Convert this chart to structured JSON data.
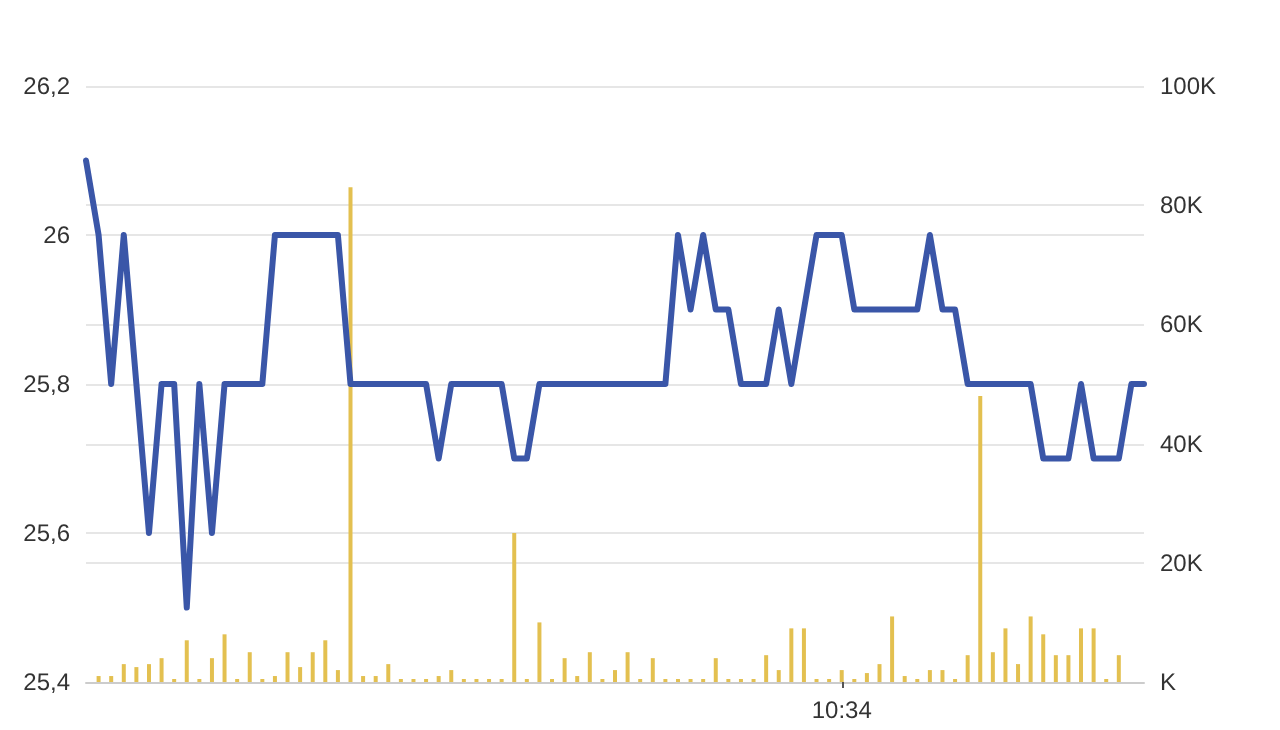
{
  "chart_data": {
    "type": "line",
    "categories": [
      null,
      null,
      null,
      null,
      null,
      null,
      null,
      null,
      null,
      null,
      null,
      null,
      null,
      null,
      null,
      null,
      null,
      null,
      null,
      null,
      null,
      null,
      null,
      null,
      null,
      null,
      null,
      null,
      null,
      null,
      null,
      null,
      null,
      null,
      null,
      null,
      null,
      null,
      null,
      null,
      null,
      null,
      null,
      null,
      null,
      null,
      null,
      null,
      null,
      null,
      null,
      null,
      null,
      null,
      null,
      null,
      null,
      null,
      null,
      null,
      "10:34",
      null,
      null,
      null,
      null,
      null,
      null,
      null,
      null,
      null,
      null,
      null,
      null,
      null,
      null,
      null,
      null,
      null,
      null,
      null,
      null,
      null,
      null,
      null,
      null
    ],
    "series": [
      {
        "type": "bar",
        "axis": "y2",
        "color": "#e3c050",
        "values": [
          null,
          1,
          1,
          3,
          2.5,
          3,
          4,
          0.5,
          7,
          0.5,
          4,
          8,
          0.5,
          5,
          0.5,
          1,
          5,
          2.5,
          5,
          7,
          2,
          83,
          1,
          1,
          3,
          0.5,
          0.5,
          0.5,
          1,
          2,
          0.5,
          0.5,
          0.5,
          0.5,
          25,
          0.5,
          10,
          0.5,
          4,
          1,
          5,
          0.5,
          2,
          5,
          0.5,
          4,
          0.5,
          0.5,
          0.5,
          0.5,
          4,
          0.5,
          0.5,
          0.5,
          4.5,
          2,
          9,
          9,
          0.5,
          0.5,
          2,
          0.5,
          1.5,
          3,
          11,
          1,
          0.5,
          2,
          2,
          0.5,
          4.5,
          48,
          5,
          9,
          3,
          11,
          8,
          4.5,
          4.5,
          9,
          9,
          0.5,
          4.5,
          null,
          null
        ]
      },
      {
        "color": "#3a56a8",
        "values": [
          26.1,
          26.0,
          25.8,
          26.0,
          25.8,
          25.6,
          25.8,
          25.8,
          25.5,
          25.8,
          25.6,
          25.8,
          25.8,
          25.8,
          25.8,
          26.0,
          26.0,
          26.0,
          26.0,
          26.0,
          26.0,
          25.8,
          25.8,
          25.8,
          25.8,
          25.8,
          25.8,
          25.8,
          25.7,
          25.8,
          25.8,
          25.8,
          25.8,
          25.8,
          25.7,
          25.7,
          25.8,
          25.8,
          25.8,
          25.8,
          25.8,
          25.8,
          25.8,
          25.8,
          25.8,
          25.8,
          25.8,
          26.0,
          25.9,
          26.0,
          25.9,
          25.9,
          25.8,
          25.8,
          25.8,
          25.9,
          25.8,
          25.9,
          26.0,
          26.0,
          26.0,
          25.9,
          25.9,
          25.9,
          25.9,
          25.9,
          25.9,
          26.0,
          25.9,
          25.9,
          25.8,
          25.8,
          25.8,
          25.8,
          25.8,
          25.8,
          25.7,
          25.7,
          25.7,
          25.8,
          25.7,
          25.7,
          25.7,
          25.8,
          25.8
        ]
      }
    ],
    "ylim": [
      25.4,
      26.2
    ],
    "yticks": [
      {
        "value": 25.4,
        "label": "25,4"
      },
      {
        "value": 25.6,
        "label": "25,6"
      },
      {
        "value": 25.8,
        "label": "25,8"
      },
      26,
      {
        "value": 26.2,
        "label": "26,2"
      }
    ],
    "y2lim": [
      0,
      100
    ],
    "y2ticks": [
      {
        "value": 0,
        "label": "K"
      },
      {
        "value": 20,
        "label": "20K"
      },
      {
        "value": 40,
        "label": "40K"
      },
      {
        "value": 60,
        "label": "60K"
      },
      {
        "value": 80,
        "label": "80K"
      },
      {
        "value": 100,
        "label": "100K"
      }
    ],
    "grid": "y",
    "marker": "none",
    "line_style": "solid"
  }
}
